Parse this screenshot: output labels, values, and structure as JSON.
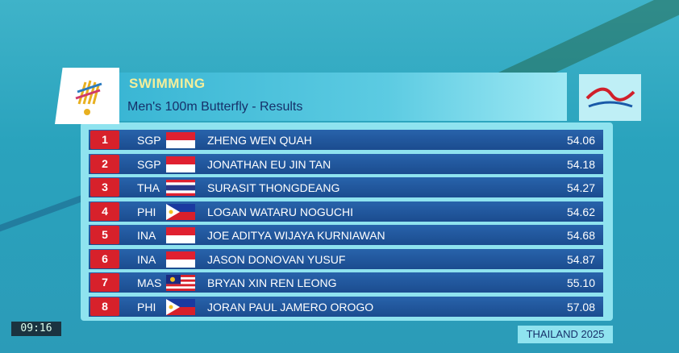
{
  "header": {
    "category": "SWIMMING",
    "event": "Men's 100m Butterfly - Results"
  },
  "results": [
    {
      "rank": 1,
      "country": "SGP",
      "name": "ZHENG WEN QUAH",
      "time": "54.06"
    },
    {
      "rank": 2,
      "country": "SGP",
      "name": "JONATHAN EU JIN TAN",
      "time": "54.18"
    },
    {
      "rank": 3,
      "country": "THA",
      "name": "SURASIT THONGDEANG",
      "time": "54.27"
    },
    {
      "rank": 4,
      "country": "PHI",
      "name": "LOGAN WATARU NOGUCHI",
      "time": "54.62"
    },
    {
      "rank": 5,
      "country": "INA",
      "name": "JOE ADITYA WIJAYA KURNIAWAN",
      "time": "54.68"
    },
    {
      "rank": 6,
      "country": "INA",
      "name": "JASON DONOVAN YUSUF",
      "time": "54.87"
    },
    {
      "rank": 7,
      "country": "MAS",
      "name": "BRYAN XIN REN LEONG",
      "time": "55.10"
    },
    {
      "rank": 8,
      "country": "PHI",
      "name": "JORAN PAUL JAMERO OROGO",
      "time": "57.08"
    }
  ],
  "footer": "THAILAND 2025",
  "clock": "09:16"
}
